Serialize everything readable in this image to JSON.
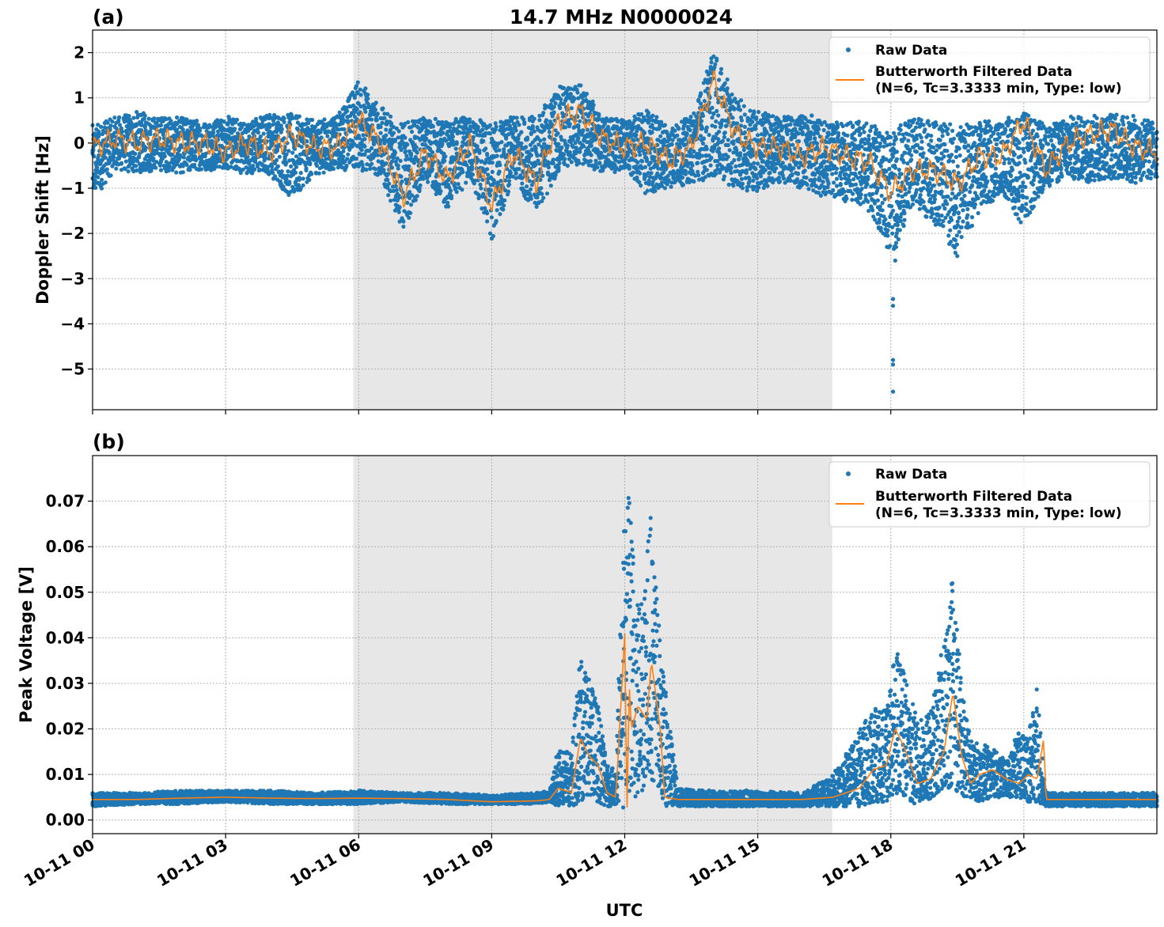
{
  "figure_title": "14.7 MHz N0000024",
  "x_axis": {
    "label": "UTC",
    "tick_labels": [
      "10-11 00",
      "10-11 03",
      "10-11 06",
      "10-11 09",
      "10-11 12",
      "10-11 15",
      "10-11 18",
      "10-11 21"
    ],
    "tick_hours": [
      0,
      3,
      6,
      9,
      12,
      15,
      18,
      21
    ],
    "range_hours": [
      0,
      24
    ]
  },
  "legend": {
    "raw_label": "Raw Data",
    "filtered_label_line1": "Butterworth Filtered Data",
    "filtered_label_line2": "(N=6, Tc=3.3333 min, Type: low)"
  },
  "colors": {
    "raw": "#1f77b4",
    "filtered": "#ff7f0e",
    "shade": "#e7e7e7"
  },
  "chart_data": [
    {
      "type": "scatter",
      "panel_label": "(a)",
      "ylabel": "Doppler Shift [Hz]",
      "ylim": [
        -5.9,
        2.5
      ],
      "y_ticks": [
        2,
        1,
        0,
        -1,
        -2,
        -3,
        -4,
        -5
      ],
      "y_tick_labels": [
        "2",
        "1",
        "0",
        "−1",
        "−2",
        "−3",
        "−4",
        "−5"
      ],
      "grid": true,
      "legend_position": "top-right",
      "shaded_interval_hours": [
        5.88,
        16.68
      ],
      "series": [
        {
          "name": "Raw Data",
          "x_hours": [
            0,
            0.5,
            1,
            1.5,
            2,
            2.5,
            3,
            3.5,
            4,
            4.5,
            5,
            5.5,
            6,
            6.5,
            7,
            7.5,
            8,
            8.5,
            9,
            9.5,
            10,
            10.5,
            11,
            11.5,
            12,
            12.5,
            13,
            13.5,
            14,
            14.5,
            15,
            15.5,
            16,
            16.5,
            17,
            17.5,
            18,
            18.5,
            19,
            19.5,
            20,
            20.5,
            21,
            21.5,
            22,
            22.5,
            23,
            23.5,
            24
          ],
          "y_min": [
            -1.3,
            -0.6,
            -0.7,
            -0.6,
            -0.7,
            -0.6,
            -0.6,
            -0.7,
            -0.7,
            -1.3,
            -0.7,
            -0.6,
            -0.6,
            -0.8,
            -2.0,
            -0.8,
            -1.5,
            -0.8,
            -2.2,
            -0.8,
            -1.6,
            -0.7,
            -0.5,
            -0.7,
            -0.6,
            -1.2,
            -1.0,
            -0.9,
            -0.8,
            -1.0,
            -1.1,
            -0.9,
            -1.0,
            -1.2,
            -1.3,
            -1.4,
            -2.6,
            -1.4,
            -1.8,
            -2.5,
            -1.6,
            -1.1,
            -1.9,
            -1.0,
            -0.8,
            -0.9,
            -0.8,
            -0.9,
            -0.8
          ],
          "y_max": [
            0.4,
            0.6,
            0.7,
            0.6,
            0.6,
            0.5,
            0.6,
            0.5,
            0.7,
            0.7,
            0.5,
            0.6,
            1.45,
            0.8,
            0.5,
            0.6,
            0.5,
            0.6,
            0.5,
            0.6,
            0.6,
            1.3,
            1.35,
            0.6,
            0.5,
            0.8,
            0.4,
            0.6,
            2.1,
            1.0,
            0.8,
            0.6,
            0.7,
            0.5,
            0.5,
            0.5,
            0.3,
            0.6,
            0.5,
            0.4,
            0.5,
            0.5,
            0.75,
            0.4,
            0.6,
            0.6,
            0.7,
            0.6,
            0.5
          ],
          "outliers": [
            {
              "x_hours": 18.05,
              "y": -3.45
            },
            {
              "x_hours": 18.05,
              "y": -3.6
            },
            {
              "x_hours": 18.05,
              "y": -4.8
            },
            {
              "x_hours": 18.05,
              "y": -4.9
            },
            {
              "x_hours": 18.05,
              "y": -5.5
            },
            {
              "x_hours": 18.1,
              "y": -2.6
            },
            {
              "x_hours": 19.5,
              "y": -2.5
            },
            {
              "x_hours": 17.5,
              "y": -1.5
            }
          ]
        },
        {
          "name": "Butterworth Filtered Data",
          "x_hours": [
            0,
            0.5,
            1,
            1.5,
            2,
            2.5,
            3,
            3.5,
            4,
            4.5,
            5,
            5.5,
            6,
            6.5,
            7,
            7.5,
            8,
            8.5,
            9,
            9.5,
            10,
            10.5,
            11,
            11.5,
            12,
            12.5,
            13,
            13.5,
            14,
            14.5,
            15,
            15.5,
            16,
            16.5,
            17,
            17.5,
            18,
            18.5,
            19,
            19.5,
            20,
            20.5,
            21,
            21.5,
            22,
            22.5,
            23,
            23.5,
            24
          ],
          "values": [
            -0.1,
            0.1,
            0.0,
            0.1,
            0.0,
            0.0,
            -0.2,
            0.0,
            -0.2,
            0.2,
            -0.1,
            -0.1,
            0.5,
            0.0,
            -1.2,
            -0.2,
            -0.8,
            0.0,
            -1.4,
            -0.2,
            -0.9,
            0.5,
            0.7,
            0.1,
            -0.1,
            0.0,
            -0.4,
            -0.1,
            1.4,
            0.2,
            -0.1,
            -0.1,
            -0.3,
            -0.1,
            -0.3,
            -0.4,
            -1.1,
            -0.6,
            -0.6,
            -0.9,
            -0.3,
            -0.3,
            0.5,
            -0.6,
            0.0,
            0.2,
            0.3,
            -0.1,
            -0.2
          ]
        }
      ]
    },
    {
      "type": "scatter",
      "panel_label": "(b)",
      "ylabel": "Peak Voltage [V]",
      "ylim": [
        -0.003,
        0.08
      ],
      "y_ticks": [
        0.0,
        0.01,
        0.02,
        0.03,
        0.04,
        0.05,
        0.06,
        0.07
      ],
      "y_tick_labels": [
        "0.00",
        "0.01",
        "0.02",
        "0.03",
        "0.04",
        "0.05",
        "0.06",
        "0.07"
      ],
      "grid": true,
      "legend_position": "top-right",
      "shaded_interval_hours": [
        5.88,
        16.68
      ],
      "series": [
        {
          "name": "Raw Data",
          "x_hours": [
            0,
            1,
            2,
            3,
            4,
            5,
            6,
            7,
            8,
            9,
            10,
            10.3,
            10.5,
            10.8,
            11.0,
            11.2,
            11.4,
            11.6,
            11.8,
            12.0,
            12.1,
            12.3,
            12.5,
            12.6,
            12.8,
            12.9,
            13.2,
            14,
            15,
            16,
            16.7,
            17.0,
            17.3,
            17.6,
            17.9,
            18.1,
            18.3,
            18.6,
            18.9,
            19.2,
            19.4,
            19.6,
            19.8,
            20.0,
            20.3,
            20.6,
            20.9,
            21.1,
            21.3,
            21.5,
            22,
            23,
            24
          ],
          "y_min": [
            0.003,
            0.0035,
            0.0035,
            0.004,
            0.0035,
            0.0035,
            0.0035,
            0.004,
            0.0035,
            0.0035,
            0.0035,
            0.004,
            0.003,
            0.003,
            0.004,
            0.005,
            0.004,
            0.003,
            0.003,
            0.002,
            0.005,
            0.005,
            0.008,
            0.009,
            0.007,
            0.003,
            0.003,
            0.003,
            0.003,
            0.003,
            0.003,
            0.003,
            0.003,
            0.004,
            0.004,
            0.006,
            0.005,
            0.003,
            0.004,
            0.006,
            0.008,
            0.004,
            0.005,
            0.004,
            0.005,
            0.005,
            0.005,
            0.004,
            0.004,
            0.003,
            0.003,
            0.003,
            0.003
          ],
          "y_max": [
            0.006,
            0.006,
            0.0065,
            0.0065,
            0.0065,
            0.006,
            0.0065,
            0.006,
            0.006,
            0.0055,
            0.006,
            0.0065,
            0.016,
            0.015,
            0.04,
            0.032,
            0.026,
            0.012,
            0.011,
            0.076,
            0.074,
            0.05,
            0.062,
            0.07,
            0.04,
            0.03,
            0.007,
            0.0065,
            0.0065,
            0.006,
            0.01,
            0.015,
            0.02,
            0.025,
            0.024,
            0.038,
            0.033,
            0.022,
            0.024,
            0.04,
            0.058,
            0.03,
            0.018,
            0.017,
            0.016,
            0.013,
            0.02,
            0.019,
            0.03,
            0.006,
            0.006,
            0.006,
            0.006
          ]
        },
        {
          "name": "Butterworth Filtered Data",
          "x_hours": [
            0,
            1,
            2,
            3,
            4,
            5,
            6,
            7,
            8,
            9,
            10,
            10.3,
            10.5,
            10.8,
            11.0,
            11.2,
            11.4,
            11.6,
            11.8,
            12.0,
            12.05,
            12.1,
            12.15,
            12.3,
            12.5,
            12.6,
            12.8,
            12.85,
            12.9,
            13.2,
            14,
            15,
            16,
            16.7,
            17.0,
            17.3,
            17.6,
            17.9,
            18.1,
            18.3,
            18.6,
            18.9,
            19.2,
            19.4,
            19.6,
            19.8,
            20.0,
            20.3,
            20.6,
            20.9,
            21.1,
            21.3,
            21.45,
            21.5,
            22,
            23,
            24
          ],
          "values": [
            0.0045,
            0.0045,
            0.0048,
            0.005,
            0.0048,
            0.0047,
            0.0048,
            0.0047,
            0.0045,
            0.004,
            0.0042,
            0.0045,
            0.007,
            0.006,
            0.018,
            0.014,
            0.012,
            0.006,
            0.005,
            0.041,
            0.0008,
            0.03,
            0.02,
            0.025,
            0.022,
            0.035,
            0.02,
            0.013,
            0.005,
            0.0045,
            0.0045,
            0.0045,
            0.0045,
            0.005,
            0.006,
            0.007,
            0.011,
            0.012,
            0.02,
            0.016,
            0.008,
            0.009,
            0.015,
            0.028,
            0.014,
            0.008,
            0.01,
            0.011,
            0.009,
            0.008,
            0.01,
            0.009,
            0.018,
            0.0045,
            0.0045,
            0.0045,
            0.0045
          ]
        }
      ]
    }
  ]
}
